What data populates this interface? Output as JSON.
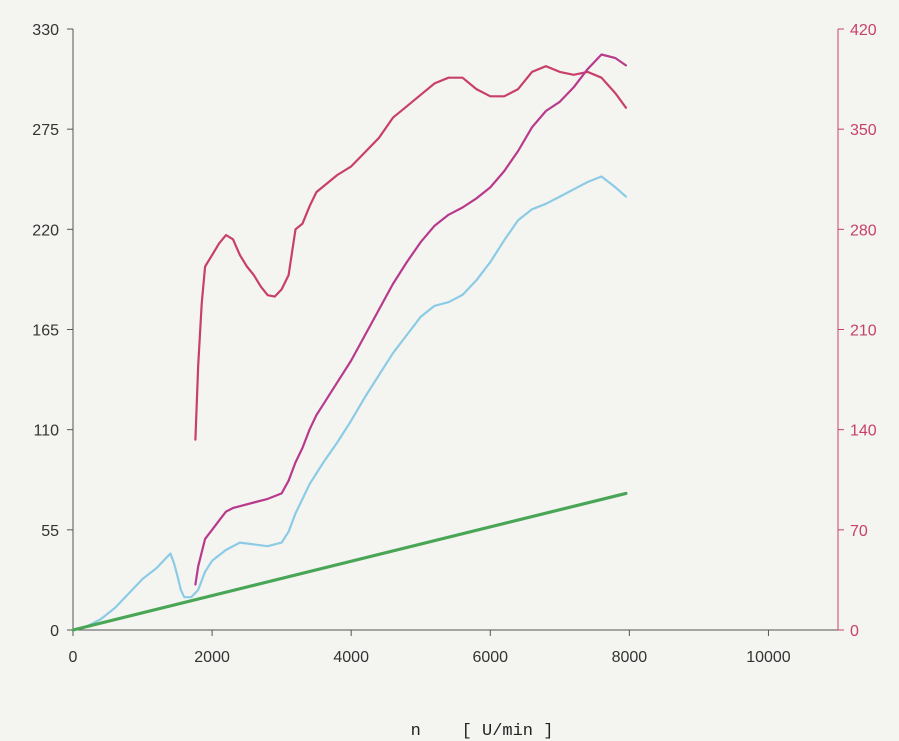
{
  "chart_data": {
    "type": "line",
    "xlabel": "n    [ U/min ]",
    "xlim": [
      0,
      11000
    ],
    "x_ticks": [
      0,
      2000,
      4000,
      6000,
      8000,
      10000
    ],
    "ylim_left": [
      0,
      330
    ],
    "y_ticks_left": [
      0,
      55,
      110,
      165,
      220,
      275,
      330
    ],
    "ylim_right": [
      0,
      420
    ],
    "y_ticks_right": [
      0,
      70,
      140,
      210,
      280,
      350,
      420
    ],
    "grid": false,
    "series": [
      {
        "color": "#c8406a",
        "axis": "right",
        "x": [
          1760,
          1800,
          1850,
          1900,
          2000,
          2100,
          2200,
          2300,
          2400,
          2500,
          2600,
          2700,
          2800,
          2900,
          3000,
          3100,
          3200,
          3300,
          3400,
          3500,
          3600,
          3800,
          4000,
          4200,
          4400,
          4600,
          4800,
          5000,
          5200,
          5400,
          5600,
          5800,
          6000,
          6200,
          6400,
          6600,
          6800,
          7000,
          7200,
          7400,
          7600,
          7800,
          7950
        ],
        "y": [
          133,
          185,
          228,
          254,
          262,
          270,
          276,
          273,
          262,
          254,
          248,
          240,
          234,
          233,
          238,
          248,
          280,
          284,
          296,
          306,
          310,
          318,
          324,
          334,
          344,
          358,
          366,
          374,
          382,
          386,
          386,
          378,
          373,
          373,
          378,
          390,
          394,
          390,
          388,
          390,
          386,
          375,
          365
        ]
      },
      {
        "color": "#b83a8c",
        "axis": "left",
        "x": [
          1760,
          1800,
          1900,
          2000,
          2100,
          2200,
          2300,
          2400,
          2600,
          2800,
          3000,
          3100,
          3200,
          3300,
          3400,
          3500,
          3600,
          3800,
          4000,
          4200,
          4400,
          4600,
          4800,
          5000,
          5200,
          5400,
          5600,
          5800,
          6000,
          6200,
          6400,
          6600,
          6800,
          7000,
          7200,
          7400,
          7600,
          7800,
          7950
        ],
        "y": [
          25,
          35,
          50,
          55,
          60,
          65,
          67,
          68,
          70,
          72,
          75,
          82,
          92,
          100,
          110,
          118,
          124,
          136,
          148,
          162,
          176,
          190,
          202,
          213,
          222,
          228,
          232,
          237,
          243,
          252,
          263,
          276,
          285,
          290,
          298,
          308,
          316,
          314,
          310
        ]
      },
      {
        "color": "#8ccbe6",
        "axis": "left",
        "x": [
          0,
          200,
          400,
          600,
          800,
          1000,
          1200,
          1400,
          1450,
          1500,
          1550,
          1600,
          1700,
          1800,
          1900,
          2000,
          2200,
          2400,
          2600,
          2800,
          3000,
          3100,
          3200,
          3300,
          3400,
          3600,
          3800,
          4000,
          4200,
          4400,
          4600,
          4800,
          5000,
          5200,
          5400,
          5600,
          5800,
          6000,
          6200,
          6400,
          6600,
          6800,
          7000,
          7200,
          7400,
          7600,
          7800,
          7950
        ],
        "y": [
          0,
          2,
          6,
          12,
          20,
          28,
          34,
          42,
          37,
          30,
          22,
          18,
          18,
          22,
          32,
          38,
          44,
          48,
          47,
          46,
          48,
          54,
          64,
          72,
          80,
          92,
          103,
          115,
          128,
          140,
          152,
          162,
          172,
          178,
          180,
          184,
          192,
          202,
          214,
          225,
          231,
          234,
          238,
          242,
          246,
          249,
          243,
          238
        ]
      },
      {
        "color": "#4aa657",
        "axis": "left",
        "x": [
          0,
          7950
        ],
        "y": [
          0,
          75
        ]
      }
    ]
  }
}
